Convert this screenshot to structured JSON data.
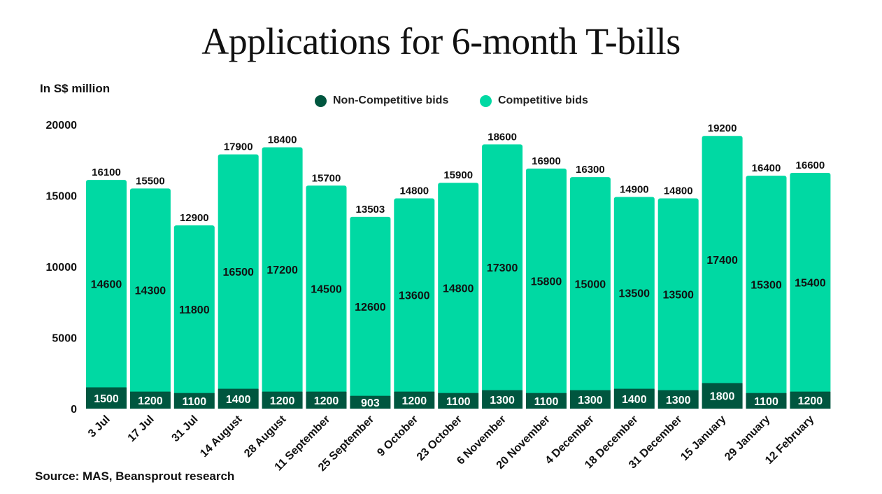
{
  "chart_data": {
    "type": "bar",
    "stacked": true,
    "title": "Applications for 6-month T-bills",
    "ylabel": "In S$ million",
    "source": "Source: MAS, Beansprout research",
    "ylim": [
      0,
      20000
    ],
    "yticks": [
      0,
      5000,
      10000,
      15000,
      20000
    ],
    "grid": false,
    "legend_position": "top-center",
    "categories": [
      "3 Jul",
      "17 Jul",
      "31 Jul",
      "14 August",
      "28 August",
      "11 September",
      "25 September",
      "9 October",
      "23 October",
      "6 November",
      "20 November",
      "4 December",
      "18 December",
      "31 December",
      "15 January",
      "29 January",
      "12 February"
    ],
    "series": [
      {
        "name": "Non-Competitive bids",
        "color": "#00563f",
        "values": [
          1500,
          1200,
          1100,
          1400,
          1200,
          1200,
          903,
          1200,
          1100,
          1300,
          1100,
          1300,
          1400,
          1300,
          1800,
          1100,
          1200
        ]
      },
      {
        "name": "Competitive bids",
        "color": "#00d9a3",
        "values": [
          14600,
          14300,
          11800,
          16500,
          17200,
          14500,
          12600,
          13600,
          14800,
          17300,
          15800,
          15000,
          13500,
          13500,
          17400,
          15300,
          15400
        ]
      }
    ],
    "totals": [
      16100,
      15500,
      12900,
      17900,
      18400,
      15700,
      13503,
      14800,
      15900,
      18600,
      16900,
      16300,
      14900,
      14800,
      19200,
      16400,
      16600
    ]
  }
}
